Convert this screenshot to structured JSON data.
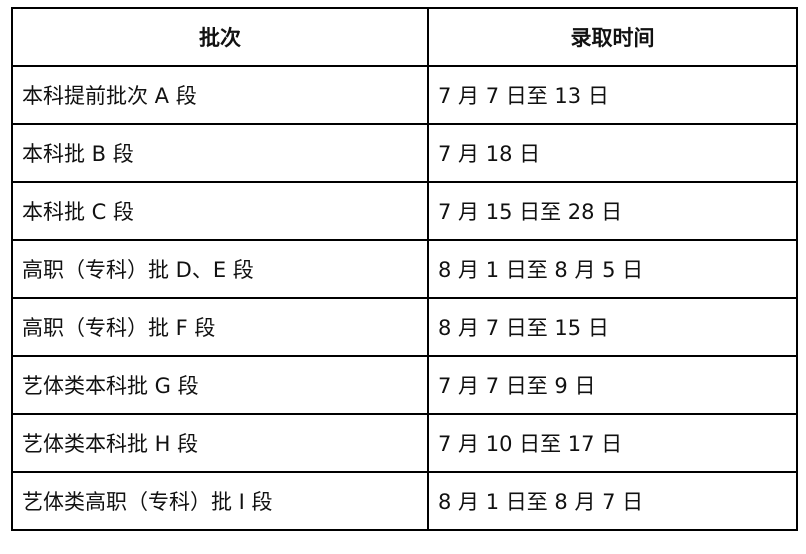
{
  "table": {
    "headers": [
      "批次",
      "录取时间"
    ],
    "rows": [
      [
        "本科提前批次 A 段",
        "7 月 7 日至 13 日"
      ],
      [
        "本科批 B 段",
        "7 月 18 日"
      ],
      [
        "本科批 C 段",
        "7 月 15 日至 28 日"
      ],
      [
        "高职（专科）批 D、E 段",
        "8 月 1 日至 8 月 5 日"
      ],
      [
        "高职（专科）批 F 段",
        "8 月 7 日至 15 日"
      ],
      [
        "艺体类本科批 G 段",
        "7 月 7 日至 9 日"
      ],
      [
        "艺体类本科批 H 段",
        "7 月 10 日至 17 日"
      ],
      [
        "艺体类高职（专科）批 I 段",
        "8 月 1 日至 8 月 7 日"
      ]
    ]
  }
}
